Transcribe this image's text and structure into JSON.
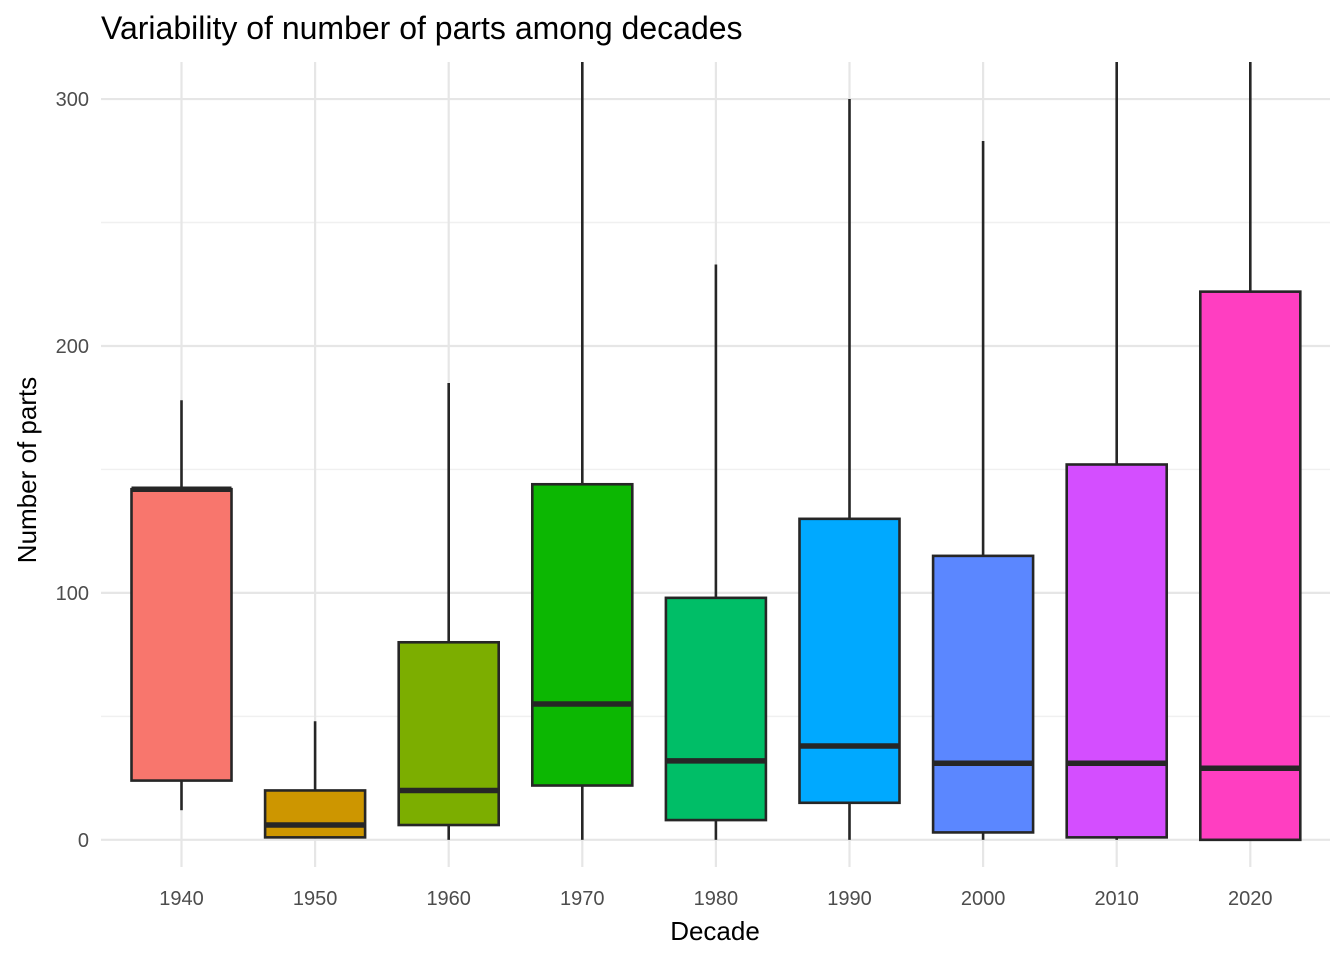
{
  "chart_data": {
    "type": "boxplot",
    "title": "Variability of number of parts among decades",
    "xlabel": "Decade",
    "ylabel": "Number of parts",
    "categories": [
      "1940",
      "1950",
      "1960",
      "1970",
      "1980",
      "1990",
      "2000",
      "2010",
      "2020"
    ],
    "boxes": [
      {
        "category": "1940",
        "min": 12,
        "q1": 24,
        "median": 142,
        "q3": 142,
        "max": 178,
        "color": "#F8766D"
      },
      {
        "category": "1950",
        "min": 1,
        "q1": 1,
        "median": 6,
        "q3": 20,
        "max": 48,
        "color": "#CD9600"
      },
      {
        "category": "1960",
        "min": 0,
        "q1": 6,
        "median": 20,
        "q3": 80,
        "max": 185,
        "color": "#7CAE00"
      },
      {
        "category": "1970",
        "min": 0,
        "q1": 22,
        "median": 55,
        "q3": 144,
        "max": 320,
        "color": "#0CB702"
      },
      {
        "category": "1980",
        "min": 0,
        "q1": 8,
        "median": 32,
        "q3": 98,
        "max": 233,
        "color": "#00BE67"
      },
      {
        "category": "1990",
        "min": 0,
        "q1": 15,
        "median": 38,
        "q3": 130,
        "max": 300,
        "color": "#00A9FF"
      },
      {
        "category": "2000",
        "min": 0,
        "q1": 3,
        "median": 31,
        "q3": 115,
        "max": 283,
        "color": "#5B87FF"
      },
      {
        "category": "2010",
        "min": 0,
        "q1": 1,
        "median": 31,
        "q3": 152,
        "max": 320,
        "color": "#D44EFF"
      },
      {
        "category": "2020",
        "min": 0,
        "q1": 0,
        "median": 29,
        "q3": 222,
        "max": 320,
        "color": "#FF3EC1"
      }
    ],
    "ylim": [
      -11,
      315
    ],
    "yticks": [
      0,
      100,
      200,
      300
    ],
    "grid": true,
    "legend": "none"
  }
}
